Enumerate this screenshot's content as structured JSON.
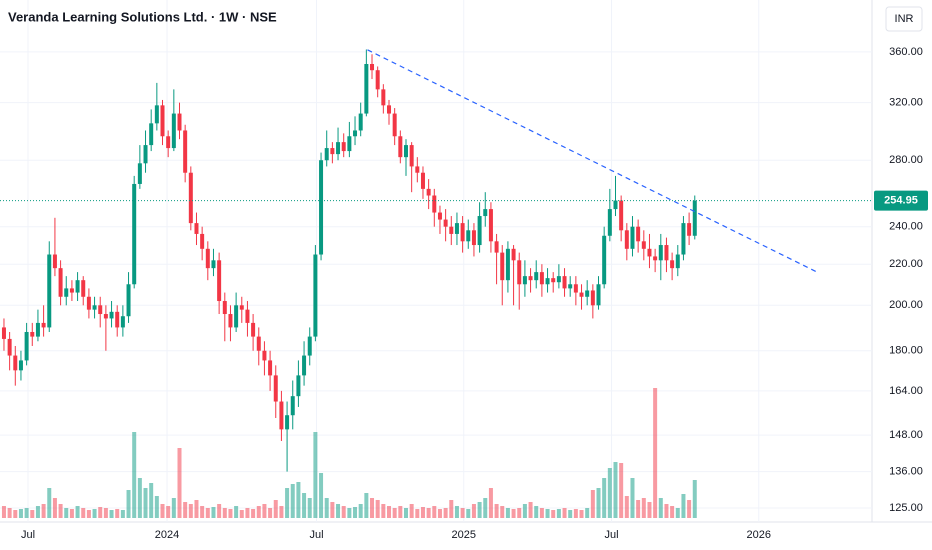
{
  "chart_data": {
    "type": "candlestick",
    "title": "Veranda Learning Solutions Ltd. · 1W · NSE",
    "currency": "INR",
    "log_scale": true,
    "grid": true,
    "up_color": "#089981",
    "down_color": "#f23645",
    "ylim": [
      121,
      406
    ],
    "yticks": [
      {
        "value": 360,
        "label": "360.00"
      },
      {
        "value": 320,
        "label": "320.00"
      },
      {
        "value": 280,
        "label": "280.00"
      },
      {
        "value": 240,
        "label": "240.00"
      },
      {
        "value": 220,
        "label": "220.00"
      },
      {
        "value": 200,
        "label": "200.00"
      },
      {
        "value": 180,
        "label": "180.00"
      },
      {
        "value": 164,
        "label": "164.00"
      },
      {
        "value": 148,
        "label": "148.00"
      },
      {
        "value": 136,
        "label": "136.00"
      },
      {
        "value": 125,
        "label": "125.00"
      }
    ],
    "xlim": [
      -0.7,
      153.3
    ],
    "xticks": [
      {
        "value": 4.25,
        "label": "Jul"
      },
      {
        "value": 28.8,
        "label": "2024"
      },
      {
        "value": 55.2,
        "label": "Jul"
      },
      {
        "value": 81.2,
        "label": "2025"
      },
      {
        "value": 107.3,
        "label": "Jul"
      },
      {
        "value": 133.3,
        "label": "2026"
      }
    ],
    "open": [
      190,
      185,
      178,
      172,
      176,
      188,
      186,
      192,
      190,
      225,
      218,
      204,
      208,
      206,
      212,
      204,
      198,
      200,
      196,
      194,
      197,
      190,
      195,
      210,
      265,
      278,
      290,
      305,
      318,
      296,
      288,
      312,
      300,
      272,
      242,
      236,
      228,
      218,
      222,
      202,
      196,
      190,
      200,
      198,
      192,
      186,
      180,
      176,
      170,
      160,
      150,
      155,
      162,
      170,
      178,
      186,
      225,
      280,
      288,
      284,
      292,
      286,
      296,
      300,
      312,
      350,
      345,
      330,
      318,
      312,
      296,
      282,
      290,
      276,
      272,
      262,
      258,
      248,
      244,
      240,
      236,
      242,
      232,
      238,
      230,
      246,
      250,
      232,
      226,
      212,
      228,
      222,
      210,
      214,
      212,
      216,
      210,
      213,
      211,
      214,
      208,
      210,
      206,
      204,
      207,
      200,
      210,
      235,
      250,
      255,
      238,
      228,
      240,
      232,
      228,
      224,
      222,
      230,
      222,
      218,
      225,
      242,
      235
    ],
    "high": [
      194,
      188,
      182,
      180,
      192,
      192,
      198,
      200,
      232,
      245,
      222,
      214,
      212,
      216,
      214,
      208,
      204,
      204,
      200,
      202,
      200,
      200,
      216,
      270,
      290,
      300,
      315,
      335,
      322,
      300,
      330,
      320,
      304,
      276,
      248,
      240,
      232,
      228,
      226,
      206,
      200,
      206,
      204,
      202,
      196,
      190,
      184,
      180,
      174,
      164,
      160,
      168,
      176,
      184,
      190,
      230,
      285,
      300,
      292,
      302,
      298,
      306,
      310,
      320,
      362,
      358,
      348,
      334,
      322,
      316,
      300,
      294,
      292,
      282,
      276,
      268,
      262,
      252,
      250,
      246,
      248,
      246,
      244,
      242,
      254,
      260,
      254,
      236,
      230,
      232,
      230,
      226,
      222,
      218,
      222,
      220,
      218,
      216,
      220,
      218,
      214,
      214,
      210,
      212,
      210,
      214,
      240,
      262,
      270,
      258,
      242,
      246,
      244,
      238,
      236,
      228,
      236,
      234,
      226,
      230,
      246,
      248,
      258
    ],
    "low": [
      180,
      172,
      166,
      168,
      174,
      182,
      184,
      186,
      188,
      214,
      200,
      200,
      202,
      202,
      200,
      194,
      194,
      190,
      180,
      190,
      186,
      186,
      192,
      208,
      262,
      272,
      286,
      300,
      290,
      282,
      286,
      294,
      266,
      238,
      230,
      222,
      212,
      214,
      196,
      184,
      184,
      188,
      192,
      186,
      180,
      174,
      170,
      164,
      154,
      146,
      136,
      150,
      158,
      166,
      174,
      184,
      222,
      276,
      278,
      280,
      282,
      282,
      290,
      296,
      310,
      338,
      324,
      312,
      304,
      290,
      278,
      270,
      260,
      266,
      256,
      250,
      240,
      236,
      232,
      230,
      230,
      226,
      228,
      224,
      226,
      240,
      226,
      210,
      200,
      206,
      200,
      198,
      204,
      206,
      208,
      204,
      206,
      206,
      208,
      204,
      204,
      200,
      198,
      200,
      194,
      198,
      208,
      232,
      246,
      232,
      222,
      224,
      226,
      222,
      218,
      216,
      212,
      216,
      212,
      214,
      222,
      230,
      233
    ],
    "close": [
      185,
      178,
      172,
      176,
      188,
      186,
      192,
      190,
      225,
      218,
      204,
      208,
      206,
      212,
      204,
      198,
      200,
      196,
      194,
      197,
      190,
      195,
      210,
      265,
      278,
      290,
      305,
      318,
      296,
      288,
      312,
      300,
      272,
      242,
      236,
      228,
      218,
      222,
      202,
      196,
      190,
      200,
      198,
      192,
      186,
      180,
      176,
      170,
      160,
      150,
      155,
      162,
      170,
      178,
      186,
      225,
      280,
      288,
      284,
      292,
      286,
      296,
      300,
      312,
      350,
      345,
      330,
      318,
      312,
      296,
      282,
      290,
      276,
      272,
      262,
      258,
      248,
      244,
      240,
      236,
      242,
      232,
      238,
      230,
      246,
      250,
      232,
      226,
      212,
      228,
      222,
      210,
      214,
      212,
      216,
      210,
      213,
      211,
      214,
      208,
      210,
      206,
      204,
      207,
      200,
      210,
      235,
      250,
      255,
      238,
      228,
      240,
      232,
      228,
      224,
      222,
      230,
      222,
      218,
      225,
      242,
      235,
      254.95
    ],
    "volume": [
      12,
      10,
      8,
      9,
      10,
      8,
      12,
      14,
      30,
      20,
      14,
      10,
      9,
      12,
      10,
      8,
      9,
      11,
      10,
      8,
      9,
      8,
      28,
      86,
      40,
      30,
      35,
      22,
      14,
      12,
      20,
      70,
      16,
      14,
      18,
      12,
      10,
      11,
      14,
      10,
      9,
      12,
      8,
      10,
      9,
      12,
      14,
      10,
      18,
      12,
      30,
      34,
      36,
      25,
      20,
      86,
      45,
      20,
      16,
      14,
      12,
      10,
      11,
      14,
      25,
      20,
      18,
      14,
      12,
      10,
      12,
      10,
      14,
      9,
      11,
      10,
      12,
      9,
      10,
      18,
      12,
      10,
      9,
      14,
      16,
      20,
      30,
      14,
      12,
      10,
      9,
      10,
      14,
      16,
      12,
      10,
      9,
      8,
      9,
      10,
      8,
      9,
      8,
      10,
      28,
      30,
      40,
      50,
      56,
      55,
      22,
      40,
      18,
      20,
      16,
      130,
      20,
      14,
      12,
      10,
      24,
      18,
      38
    ],
    "volume_lim": [
      0,
      150
    ],
    "last_price": {
      "value": 254.95,
      "label": "254.95"
    },
    "trendline": {
      "x": [
        64.2,
        143.9
      ],
      "y": [
        361.7,
        215.6
      ],
      "color": "#2962ff"
    }
  }
}
